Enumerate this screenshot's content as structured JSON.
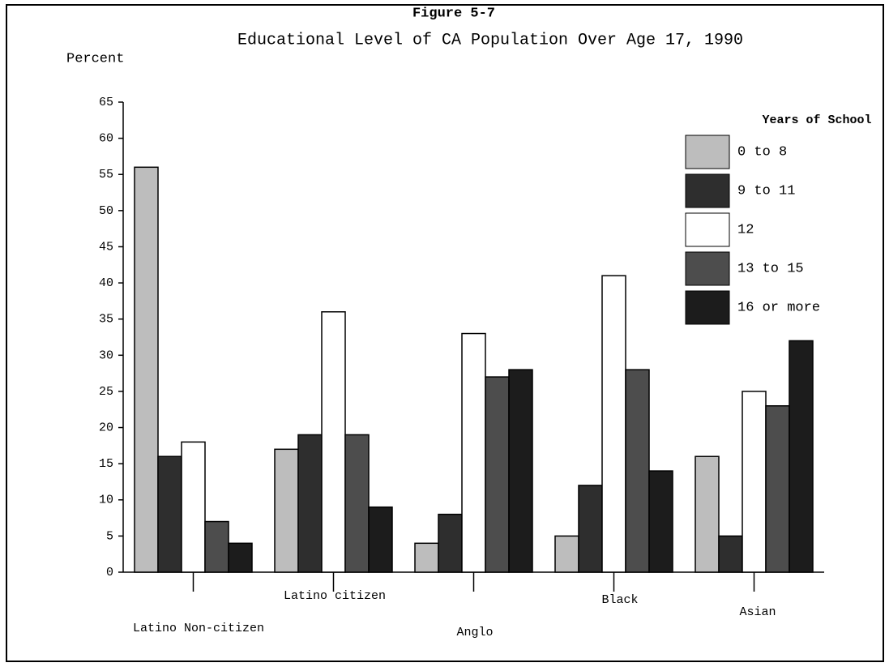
{
  "chart_data": {
    "type": "bar",
    "title": "Figure 5-7",
    "subtitle": "Educational Level of CA Population Over Age 17, 1990",
    "y_label": "Percent",
    "legend_title": "Years of School",
    "categories": [
      "Latino Non-citizen",
      "Latino citizen",
      "Anglo",
      "Black",
      "Asian"
    ],
    "series": [
      {
        "name": "0 to 8",
        "color": "#bdbdbd",
        "values": [
          56,
          17,
          4,
          5,
          16
        ]
      },
      {
        "name": "9 to 11",
        "color": "#2e2e2e",
        "values": [
          16,
          19,
          8,
          12,
          5
        ]
      },
      {
        "name": "12",
        "color": "#ffffff",
        "values": [
          18,
          36,
          33,
          41,
          25
        ]
      },
      {
        "name": "13 to 15",
        "color": "#4d4d4d",
        "values": [
          7,
          19,
          27,
          28,
          23
        ]
      },
      {
        "name": "16 or more",
        "color": "#1c1c1c",
        "values": [
          4,
          9,
          28,
          14,
          32
        ]
      }
    ],
    "ylim": [
      0,
      65
    ],
    "yticks": [
      0,
      5,
      10,
      15,
      20,
      25,
      30,
      35,
      40,
      45,
      50,
      55,
      60,
      65
    ]
  }
}
